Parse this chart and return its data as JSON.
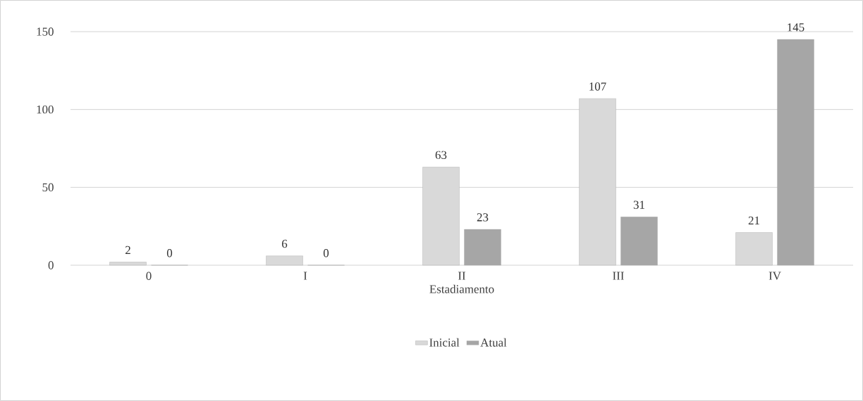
{
  "chart_data": {
    "type": "bar",
    "xlabel": "Estadiamento",
    "categories": [
      "0",
      "I",
      "II",
      "III",
      "IV"
    ],
    "series": [
      {
        "name": "Inicial",
        "color": "#d9d9d9",
        "values": [
          2,
          6,
          63,
          107,
          21
        ]
      },
      {
        "name": "Atual",
        "color": "#a6a6a6",
        "values": [
          0,
          0,
          23,
          31,
          145
        ]
      }
    ],
    "ylim": [
      0,
      150
    ],
    "yticks": [
      0,
      50,
      100,
      150
    ],
    "grid": "y",
    "legend": "bottom",
    "data_labels": true
  }
}
